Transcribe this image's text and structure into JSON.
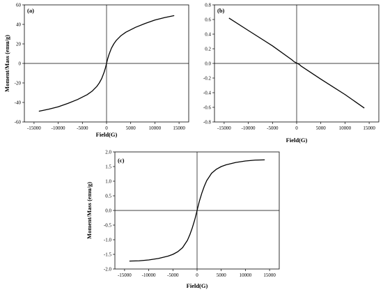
{
  "chart_data": [
    {
      "type": "line",
      "panel_label": "(a)",
      "xlabel": "Field(G)",
      "ylabel": "Moment/Mass (emu/g)",
      "xlim": [
        -17000,
        17000
      ],
      "ylim": [
        -60,
        60
      ],
      "xticks": [
        -15000,
        -10000,
        -5000,
        0,
        5000,
        10000,
        15000
      ],
      "yticks": [
        -60,
        -40,
        -20,
        0,
        20,
        40,
        60
      ],
      "ytick_labels": [
        "-60",
        "-40",
        "-20",
        "0",
        "20",
        "40",
        "60"
      ],
      "zero_lines": true,
      "series": [
        {
          "color": "#000000",
          "x": [
            -14000,
            -12000,
            -10000,
            -8000,
            -6000,
            -4000,
            -3000,
            -2000,
            -1500,
            -1000,
            -500,
            -250,
            0,
            250,
            500,
            1000,
            1500,
            2000,
            3000,
            4000,
            6000,
            8000,
            10000,
            12000,
            14000
          ],
          "y": [
            -49,
            -47,
            -44.5,
            -41,
            -37,
            -32,
            -28.5,
            -23.5,
            -20,
            -15.5,
            -9,
            -5,
            0,
            5,
            9,
            15.5,
            20,
            23.5,
            28.5,
            32,
            37,
            41,
            44.5,
            47,
            49
          ]
        }
      ]
    },
    {
      "type": "line",
      "panel_label": "(b)",
      "xlabel": "Field(G)",
      "ylabel": "",
      "xlim": [
        -17000,
        17000
      ],
      "ylim": [
        -0.8,
        0.8
      ],
      "xticks": [
        -15000,
        -10000,
        -5000,
        0,
        5000,
        10000,
        15000
      ],
      "yticks": [
        -0.8,
        -0.6,
        -0.4,
        -0.2,
        0,
        0.2,
        0.4,
        0.6,
        0.8
      ],
      "ytick_labels": [
        "-0.8",
        "-0.6",
        "-0.4",
        "-0.2",
        "0.0",
        "0.2",
        "0.4",
        "0.6",
        "0.8"
      ],
      "zero_lines": true,
      "series": [
        {
          "color": "#000000",
          "x": [
            -14000,
            -10000,
            -5000,
            -1000,
            -500,
            0,
            500,
            1000,
            5000,
            10000,
            14000
          ],
          "y": [
            0.62,
            0.45,
            0.24,
            0.05,
            0.022,
            0.005,
            -0.012,
            -0.04,
            -0.215,
            -0.425,
            -0.61
          ]
        }
      ]
    },
    {
      "type": "line",
      "panel_label": "(c)",
      "xlabel": "Field(G)",
      "ylabel": "Moment/Mass (emu/g)",
      "xlim": [
        -17000,
        17000
      ],
      "ylim": [
        -2.0,
        2.0
      ],
      "xticks": [
        -15000,
        -10000,
        -5000,
        0,
        5000,
        10000,
        15000
      ],
      "yticks": [
        -2.0,
        -1.5,
        -1.0,
        -0.5,
        0,
        0.5,
        1.0,
        1.5,
        2.0
      ],
      "ytick_labels": [
        "-2.0",
        "-1.5",
        "-1.0",
        "-0.5",
        "0.0",
        "0.5",
        "1.0",
        "1.5",
        "2.0"
      ],
      "zero_lines": true,
      "series": [
        {
          "color": "#000000",
          "x": [
            -14000,
            -12000,
            -10000,
            -8000,
            -6000,
            -5000,
            -4000,
            -3000,
            -2000,
            -1500,
            -1000,
            -500,
            -250,
            0,
            250,
            500,
            1000,
            1500,
            2000,
            3000,
            4000,
            5000,
            6000,
            8000,
            10000,
            12000,
            14000
          ],
          "y": [
            -1.73,
            -1.72,
            -1.69,
            -1.64,
            -1.56,
            -1.5,
            -1.41,
            -1.27,
            -1.02,
            -0.83,
            -0.6,
            -0.33,
            -0.17,
            0,
            0.17,
            0.33,
            0.6,
            0.83,
            1.02,
            1.27,
            1.41,
            1.5,
            1.56,
            1.64,
            1.69,
            1.72,
            1.73
          ]
        }
      ]
    }
  ]
}
